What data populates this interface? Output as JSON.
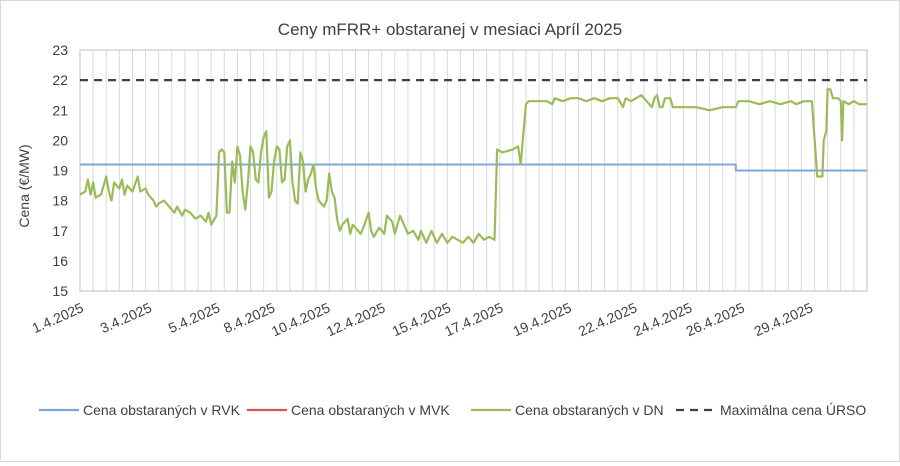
{
  "chart_data": {
    "type": "line",
    "title": "Ceny mFRR+ obstaranej v mesiaci Apríl 2025",
    "ylabel": "Cena (€/MW)",
    "xlabel": "",
    "ylim": [
      15,
      23
    ],
    "yticks": [
      15,
      16,
      17,
      18,
      19,
      20,
      21,
      22,
      23
    ],
    "xlim": [
      1,
      31
    ],
    "xticks": [
      {
        "day": 1,
        "label": "1.4.2025"
      },
      {
        "day": 3.6,
        "label": "3.4.2025"
      },
      {
        "day": 6.2,
        "label": "5.4.2025"
      },
      {
        "day": 8.3,
        "label": "8.4.2025"
      },
      {
        "day": 10.4,
        "label": "10.4.2025"
      },
      {
        "day": 12.5,
        "label": "12.4.2025"
      },
      {
        "day": 15.0,
        "label": "15.4.2025"
      },
      {
        "day": 17.0,
        "label": "17.4.2025"
      },
      {
        "day": 19.6,
        "label": "19.4.2025"
      },
      {
        "day": 22.1,
        "label": "22.4.2025"
      },
      {
        "day": 24.2,
        "label": "24.4.2025"
      },
      {
        "day": 26.2,
        "label": "26.4.2025"
      },
      {
        "day": 28.8,
        "label": "29.4.2025"
      }
    ],
    "grid": "vertical",
    "legend_position": "bottom",
    "series": [
      {
        "name": "Cena obstaraných v RVK",
        "color": "#7fa7d6",
        "dash": "none",
        "points": [
          [
            1,
            19.2
          ],
          [
            26.0,
            19.2
          ],
          [
            26.0,
            19.0
          ],
          [
            31,
            19.0
          ]
        ]
      },
      {
        "name": "Cena obstaraných v MVK",
        "color": "#d9534f",
        "dash": "none",
        "points": []
      },
      {
        "name": "Cena obstaraných v DN",
        "color": "#9bbb59",
        "dash": "none",
        "points": [
          [
            1.0,
            18.2
          ],
          [
            1.2,
            18.3
          ],
          [
            1.3,
            18.7
          ],
          [
            1.4,
            18.2
          ],
          [
            1.5,
            18.6
          ],
          [
            1.6,
            18.1
          ],
          [
            1.8,
            18.2
          ],
          [
            1.9,
            18.5
          ],
          [
            2.0,
            18.8
          ],
          [
            2.1,
            18.3
          ],
          [
            2.2,
            18.0
          ],
          [
            2.3,
            18.6
          ],
          [
            2.5,
            18.4
          ],
          [
            2.6,
            18.7
          ],
          [
            2.7,
            18.2
          ],
          [
            2.8,
            18.5
          ],
          [
            3.0,
            18.3
          ],
          [
            3.2,
            18.8
          ],
          [
            3.3,
            18.3
          ],
          [
            3.5,
            18.4
          ],
          [
            3.6,
            18.2
          ],
          [
            3.8,
            18.0
          ],
          [
            3.9,
            17.8
          ],
          [
            4.0,
            17.9
          ],
          [
            4.2,
            18.0
          ],
          [
            4.4,
            17.8
          ],
          [
            4.6,
            17.6
          ],
          [
            4.7,
            17.8
          ],
          [
            4.9,
            17.5
          ],
          [
            5.0,
            17.7
          ],
          [
            5.2,
            17.6
          ],
          [
            5.4,
            17.4
          ],
          [
            5.6,
            17.5
          ],
          [
            5.8,
            17.3
          ],
          [
            5.9,
            17.6
          ],
          [
            6.0,
            17.2
          ],
          [
            6.2,
            17.5
          ],
          [
            6.3,
            19.6
          ],
          [
            6.4,
            19.7
          ],
          [
            6.5,
            19.6
          ],
          [
            6.6,
            17.6
          ],
          [
            6.7,
            17.6
          ],
          [
            6.8,
            19.3
          ],
          [
            6.9,
            18.6
          ],
          [
            7.0,
            19.8
          ],
          [
            7.1,
            19.5
          ],
          [
            7.2,
            18.3
          ],
          [
            7.3,
            17.7
          ],
          [
            7.4,
            18.6
          ],
          [
            7.5,
            19.8
          ],
          [
            7.6,
            19.6
          ],
          [
            7.7,
            18.7
          ],
          [
            7.8,
            18.6
          ],
          [
            7.9,
            19.6
          ],
          [
            8.0,
            20.1
          ],
          [
            8.1,
            20.3
          ],
          [
            8.2,
            18.1
          ],
          [
            8.3,
            18.3
          ],
          [
            8.4,
            19.3
          ],
          [
            8.5,
            19.8
          ],
          [
            8.6,
            19.7
          ],
          [
            8.7,
            18.6
          ],
          [
            8.8,
            18.7
          ],
          [
            8.9,
            19.8
          ],
          [
            9.0,
            20.0
          ],
          [
            9.1,
            18.6
          ],
          [
            9.2,
            18.0
          ],
          [
            9.3,
            17.9
          ],
          [
            9.4,
            19.6
          ],
          [
            9.5,
            19.3
          ],
          [
            9.6,
            18.3
          ],
          [
            9.7,
            18.7
          ],
          [
            9.8,
            18.9
          ],
          [
            9.9,
            19.2
          ],
          [
            10.0,
            18.4
          ],
          [
            10.1,
            18.0
          ],
          [
            10.2,
            17.9
          ],
          [
            10.3,
            17.8
          ],
          [
            10.4,
            18.0
          ],
          [
            10.5,
            18.9
          ],
          [
            10.6,
            18.3
          ],
          [
            10.7,
            18.1
          ],
          [
            10.8,
            17.4
          ],
          [
            10.9,
            17.0
          ],
          [
            11.0,
            17.2
          ],
          [
            11.2,
            17.4
          ],
          [
            11.3,
            16.9
          ],
          [
            11.4,
            17.2
          ],
          [
            11.6,
            17.0
          ],
          [
            11.7,
            16.9
          ],
          [
            11.8,
            17.1
          ],
          [
            12.0,
            17.6
          ],
          [
            12.1,
            17.0
          ],
          [
            12.2,
            16.8
          ],
          [
            12.4,
            17.1
          ],
          [
            12.6,
            16.9
          ],
          [
            12.7,
            17.5
          ],
          [
            12.9,
            17.3
          ],
          [
            13.0,
            16.9
          ],
          [
            13.2,
            17.5
          ],
          [
            13.4,
            17.1
          ],
          [
            13.5,
            16.9
          ],
          [
            13.7,
            17.0
          ],
          [
            13.9,
            16.7
          ],
          [
            14.0,
            17.0
          ],
          [
            14.2,
            16.6
          ],
          [
            14.4,
            17.0
          ],
          [
            14.6,
            16.6
          ],
          [
            14.8,
            16.9
          ],
          [
            15.0,
            16.6
          ],
          [
            15.2,
            16.8
          ],
          [
            15.4,
            16.7
          ],
          [
            15.6,
            16.6
          ],
          [
            15.8,
            16.8
          ],
          [
            16.0,
            16.6
          ],
          [
            16.2,
            16.9
          ],
          [
            16.4,
            16.7
          ],
          [
            16.6,
            16.8
          ],
          [
            16.8,
            16.7
          ],
          [
            16.9,
            19.7
          ],
          [
            17.1,
            19.6
          ],
          [
            17.5,
            19.7
          ],
          [
            17.7,
            19.8
          ],
          [
            17.8,
            19.2
          ],
          [
            17.9,
            20.2
          ],
          [
            18.0,
            21.2
          ],
          [
            18.1,
            21.3
          ],
          [
            18.5,
            21.3
          ],
          [
            18.8,
            21.3
          ],
          [
            19.0,
            21.2
          ],
          [
            19.1,
            21.4
          ],
          [
            19.4,
            21.3
          ],
          [
            19.7,
            21.4
          ],
          [
            20.0,
            21.4
          ],
          [
            20.3,
            21.3
          ],
          [
            20.6,
            21.4
          ],
          [
            20.9,
            21.3
          ],
          [
            21.2,
            21.4
          ],
          [
            21.5,
            21.4
          ],
          [
            21.7,
            21.1
          ],
          [
            21.8,
            21.4
          ],
          [
            22.0,
            21.3
          ],
          [
            22.2,
            21.4
          ],
          [
            22.4,
            21.5
          ],
          [
            22.6,
            21.3
          ],
          [
            22.8,
            21.1
          ],
          [
            22.9,
            21.4
          ],
          [
            23.0,
            21.5
          ],
          [
            23.1,
            21.1
          ],
          [
            23.2,
            21.1
          ],
          [
            23.3,
            21.4
          ],
          [
            23.5,
            21.4
          ],
          [
            23.6,
            21.1
          ],
          [
            24.0,
            21.1
          ],
          [
            24.5,
            21.1
          ],
          [
            25.0,
            21.0
          ],
          [
            25.5,
            21.1
          ],
          [
            26.0,
            21.1
          ],
          [
            26.1,
            21.3
          ],
          [
            26.5,
            21.3
          ],
          [
            26.9,
            21.2
          ],
          [
            27.3,
            21.3
          ],
          [
            27.7,
            21.2
          ],
          [
            28.1,
            21.3
          ],
          [
            28.3,
            21.2
          ],
          [
            28.6,
            21.3
          ],
          [
            28.9,
            21.3
          ],
          [
            29.1,
            18.8
          ],
          [
            29.3,
            18.8
          ],
          [
            29.35,
            20.0
          ],
          [
            29.45,
            20.3
          ],
          [
            29.5,
            21.7
          ],
          [
            29.6,
            21.7
          ],
          [
            29.7,
            21.4
          ],
          [
            29.9,
            21.4
          ],
          [
            30.0,
            21.3
          ],
          [
            30.05,
            20.0
          ],
          [
            30.1,
            21.3
          ],
          [
            30.3,
            21.2
          ],
          [
            30.5,
            21.3
          ],
          [
            30.7,
            21.2
          ],
          [
            31.0,
            21.2
          ]
        ]
      },
      {
        "name": "Maximálna cena ÚRSO",
        "color": "#404040",
        "dash": "dashed",
        "points": [
          [
            1,
            22
          ],
          [
            31,
            22
          ]
        ]
      }
    ]
  }
}
